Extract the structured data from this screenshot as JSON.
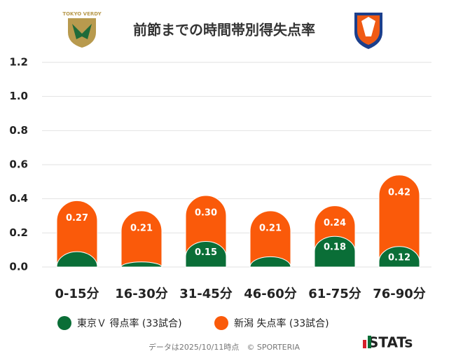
{
  "chart_data": {
    "type": "bar",
    "title": "前節までの時間帯別得失点率",
    "categories": [
      "0-15分",
      "16-30分",
      "31-45分",
      "46-60分",
      "61-75分",
      "76-90分"
    ],
    "series": [
      {
        "name": "新潟 失点率 (33試合)",
        "color": "#fa5a0a",
        "values": [
          0.27,
          0.21,
          0.3,
          0.21,
          0.24,
          0.42
        ],
        "value_labels": [
          "0.27",
          "0.21",
          "0.30",
          "0.21",
          "0.24",
          "0.42"
        ]
      },
      {
        "name": "東京Ｖ 得点率 (33試合)",
        "color": "#0a6e37",
        "values": [
          0.09,
          0.03,
          0.15,
          0.06,
          0.18,
          0.12
        ],
        "value_labels": [
          null,
          null,
          "0.15",
          null,
          "0.18",
          "0.12"
        ]
      }
    ],
    "ylim": [
      0,
      1.2
    ],
    "yticks": [
      {
        "value": 0,
        "label": "0.0"
      },
      0.2,
      0.4,
      0.6,
      0.8,
      {
        "value": 1,
        "label": "1.0"
      },
      1.2
    ],
    "grid": true,
    "footnote": "データは2025/10/11時点　© SPORTERIA",
    "brand": "STATs"
  }
}
